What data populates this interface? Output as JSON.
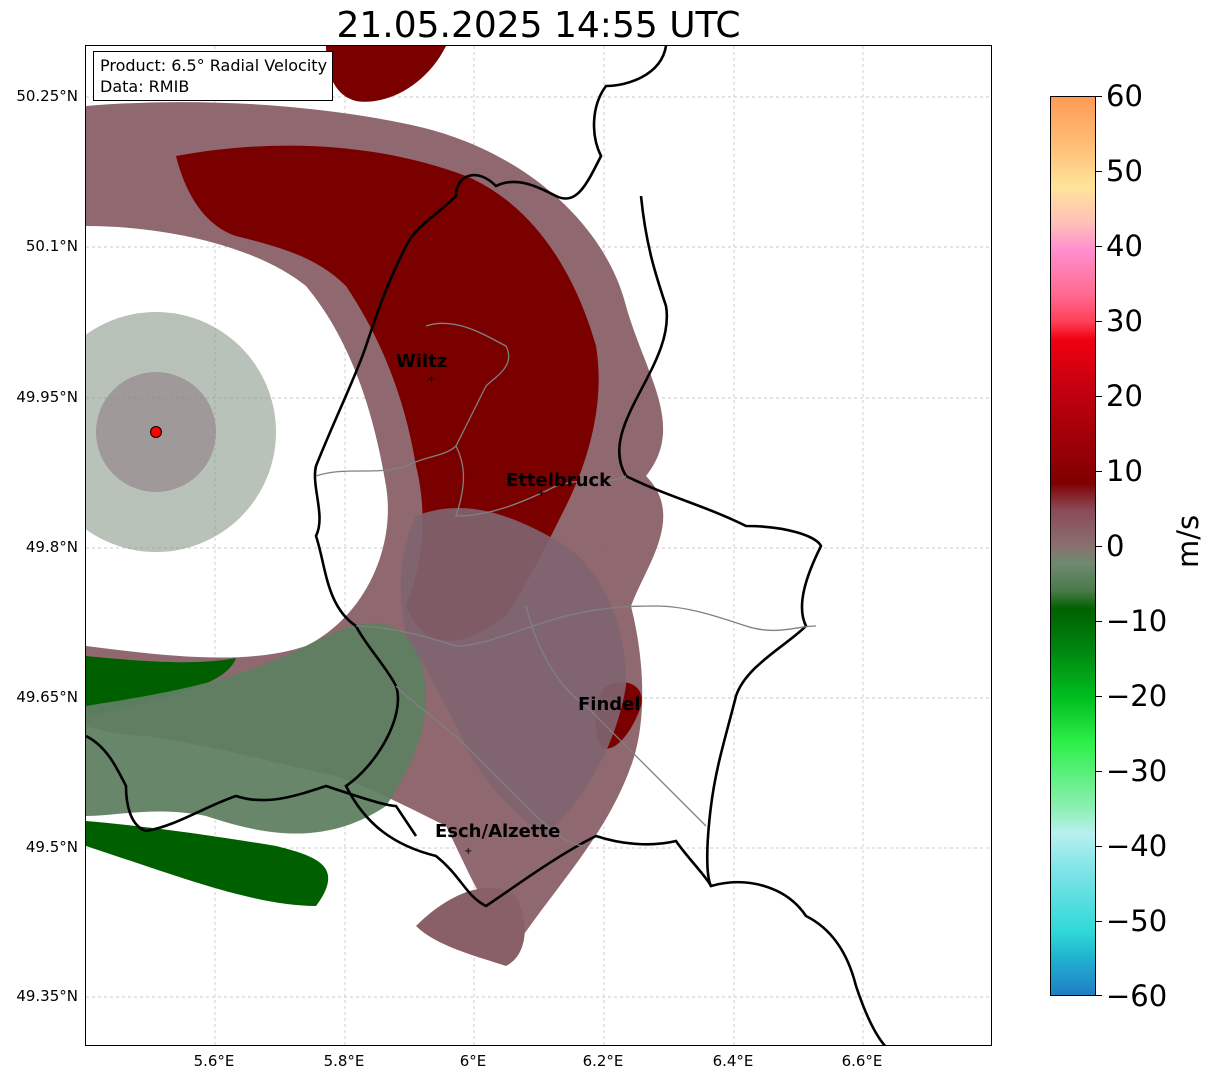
{
  "title": "21.05.2025 14:55 UTC",
  "info": {
    "product": "Product: 6.5° Radial Velocity",
    "source": "Data: RMIB"
  },
  "latitude_ticks": [
    "50.25°N",
    "50.1°N",
    "49.95°N",
    "49.8°N",
    "49.65°N",
    "49.5°N",
    "49.35°N"
  ],
  "longitude_ticks": [
    "5.6°E",
    "5.8°E",
    "6°E",
    "6.2°E",
    "6.4°E",
    "6.6°E"
  ],
  "cities": {
    "wiltz": "Wiltz",
    "ettelbruck": "Ettelbruck",
    "findel": "Findel",
    "esch": "Esch/Alzette"
  },
  "colorbar": {
    "unit": "m/s",
    "ticks": [
      "60",
      "50",
      "40",
      "30",
      "20",
      "10",
      "0",
      "−10",
      "−20",
      "−30",
      "−40",
      "−50",
      "−60"
    ],
    "range": [
      -60,
      60
    ],
    "colors": {
      "strong_inbound": "#1f7fc4",
      "cyan": "#2fd9d9",
      "light_cyan": "#b3ecf0",
      "light_green": "#5ff07a",
      "green": "#0aa81a",
      "dark_green": "#006000",
      "grey_green": "#5a8060",
      "grey": "#8a7070",
      "dark_red": "#7a0000",
      "red": "#e00010",
      "pink": "#ff7fb0",
      "peach": "#ffd49a",
      "orange": "#ff9a55"
    }
  },
  "radar_site_color": "#ff0000"
}
